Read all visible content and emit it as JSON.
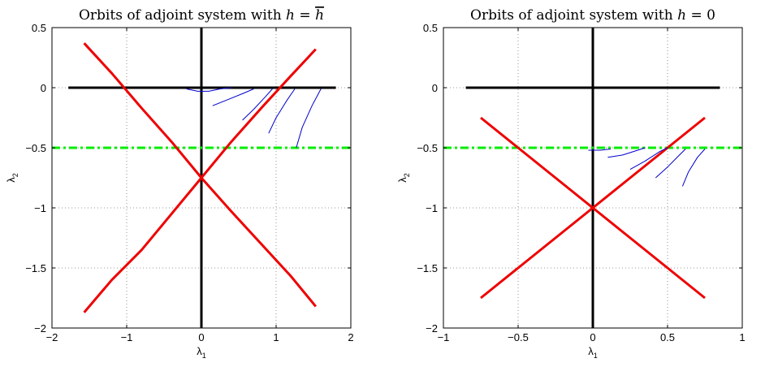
{
  "chart_data": [
    {
      "type": "line",
      "title": "Orbits of adjoint system with h = h̄",
      "title_parts": {
        "main": "Orbits of adjoint system with ",
        "var": "h",
        "eq": " = ",
        "value": "h"
      },
      "xlabel": "λ1",
      "ylabel": "λ2",
      "xlim": [
        -2,
        2
      ],
      "ylim": [
        -2,
        0.5
      ],
      "xticks": [
        -2,
        -1,
        0,
        1,
        2
      ],
      "yticks": [
        -2,
        -1.5,
        -1,
        -0.5,
        0,
        0.5
      ],
      "xtick_labels": [
        "−2",
        "−1",
        "0",
        "1",
        "2"
      ],
      "ytick_labels": [
        "−2",
        "−1.5",
        "−1",
        "−0.5",
        "0",
        "0.5"
      ],
      "grid": true,
      "series": [
        {
          "style": "axis",
          "color": "#000000",
          "points": [
            [
              -1.78,
              0
            ],
            [
              1.8,
              0
            ]
          ]
        },
        {
          "style": "axis",
          "color": "#000000",
          "points": [
            [
              0,
              0.5
            ],
            [
              0,
              -2
            ]
          ]
        },
        {
          "style": "dashdot",
          "color": "#00ee00",
          "points": [
            [
              -2,
              -0.5
            ],
            [
              2,
              -0.5
            ]
          ]
        },
        {
          "style": "thick",
          "color": "#ee0000",
          "points": [
            [
              -1.57,
              0.37
            ],
            [
              -1.2,
              0.12
            ],
            [
              -0.8,
              -0.17
            ],
            [
              -0.4,
              -0.45
            ],
            [
              0,
              -0.75
            ],
            [
              0.4,
              -1.03
            ],
            [
              0.8,
              -1.3
            ],
            [
              1.2,
              -1.57
            ],
            [
              1.53,
              -1.82
            ]
          ]
        },
        {
          "style": "thick",
          "color": "#ee0000",
          "points": [
            [
              -1.57,
              -1.87
            ],
            [
              -1.2,
              -1.6
            ],
            [
              -0.8,
              -1.35
            ],
            [
              -0.4,
              -1.05
            ],
            [
              0,
              -0.75
            ],
            [
              0.4,
              -0.45
            ],
            [
              0.8,
              -0.17
            ],
            [
              1.2,
              0.1
            ],
            [
              1.53,
              0.32
            ]
          ]
        },
        {
          "style": "thin",
          "color": "#0000cc",
          "points": [
            [
              -0.2,
              -0.01
            ],
            [
              -0.05,
              -0.03
            ],
            [
              0.1,
              -0.03
            ],
            [
              0.25,
              -0.01
            ],
            [
              0.4,
              0
            ]
          ]
        },
        {
          "style": "thin",
          "color": "#0000cc",
          "points": [
            [
              0.15,
              -0.15
            ],
            [
              0.35,
              -0.1
            ],
            [
              0.55,
              -0.05
            ],
            [
              0.7,
              -0.01
            ]
          ]
        },
        {
          "style": "thin",
          "color": "#0000cc",
          "points": [
            [
              0.55,
              -0.27
            ],
            [
              0.7,
              -0.18
            ],
            [
              0.85,
              -0.08
            ],
            [
              0.95,
              -0.01
            ]
          ]
        },
        {
          "style": "thin",
          "color": "#0000cc",
          "points": [
            [
              0.9,
              -0.38
            ],
            [
              1.0,
              -0.25
            ],
            [
              1.15,
              -0.1
            ],
            [
              1.25,
              -0.01
            ]
          ]
        },
        {
          "style": "thin",
          "color": "#0000cc",
          "points": [
            [
              1.27,
              -0.5
            ],
            [
              1.35,
              -0.33
            ],
            [
              1.48,
              -0.15
            ],
            [
              1.6,
              -0.01
            ]
          ]
        }
      ]
    },
    {
      "type": "line",
      "title": "Orbits of adjoint system with h = 0",
      "title_parts": {
        "main": "Orbits of adjoint system with ",
        "var": "h",
        "eq": " = ",
        "value": "0"
      },
      "xlabel": "λ1",
      "ylabel": "λ2",
      "xlim": [
        -1,
        1
      ],
      "ylim": [
        -2,
        0.5
      ],
      "xticks": [
        -1,
        -0.5,
        0,
        0.5,
        1
      ],
      "yticks": [
        -2,
        -1.5,
        -1,
        -0.5,
        0,
        0.5
      ],
      "xtick_labels": [
        "−1",
        "−0.5",
        "0",
        "0.5",
        "1"
      ],
      "ytick_labels": [
        "−2",
        "−1.5",
        "−1",
        "−0.5",
        "0",
        "0.5"
      ],
      "grid": true,
      "series": [
        {
          "style": "axis",
          "color": "#000000",
          "points": [
            [
              -0.85,
              0
            ],
            [
              0.85,
              0
            ]
          ]
        },
        {
          "style": "axis",
          "color": "#000000",
          "points": [
            [
              0,
              0.5
            ],
            [
              0,
              -2
            ]
          ]
        },
        {
          "style": "dashdot",
          "color": "#00ee00",
          "points": [
            [
              -1,
              -0.5
            ],
            [
              1,
              -0.5
            ]
          ]
        },
        {
          "style": "thick",
          "color": "#ee0000",
          "points": [
            [
              -0.75,
              -0.25
            ],
            [
              -0.5,
              -0.5
            ],
            [
              -0.25,
              -0.75
            ],
            [
              0,
              -1
            ],
            [
              0.25,
              -1.25
            ],
            [
              0.5,
              -1.5
            ],
            [
              0.75,
              -1.75
            ]
          ]
        },
        {
          "style": "thick",
          "color": "#ee0000",
          "points": [
            [
              -0.75,
              -1.75
            ],
            [
              -0.5,
              -1.5
            ],
            [
              -0.25,
              -1.25
            ],
            [
              0,
              -1
            ],
            [
              0.25,
              -0.75
            ],
            [
              0.5,
              -0.5
            ],
            [
              0.75,
              -0.25
            ]
          ]
        },
        {
          "style": "thin",
          "color": "#0000cc",
          "points": [
            [
              -0.03,
              -0.52
            ],
            [
              0.05,
              -0.52
            ],
            [
              0.12,
              -0.51
            ]
          ]
        },
        {
          "style": "thin",
          "color": "#0000cc",
          "points": [
            [
              0.1,
              -0.58
            ],
            [
              0.2,
              -0.56
            ],
            [
              0.3,
              -0.52
            ],
            [
              0.35,
              -0.5
            ]
          ]
        },
        {
          "style": "thin",
          "color": "#0000cc",
          "points": [
            [
              0.25,
              -0.68
            ],
            [
              0.35,
              -0.61
            ],
            [
              0.45,
              -0.53
            ],
            [
              0.5,
              -0.5
            ]
          ]
        },
        {
          "style": "thin",
          "color": "#0000cc",
          "points": [
            [
              0.42,
              -0.75
            ],
            [
              0.5,
              -0.66
            ],
            [
              0.58,
              -0.56
            ],
            [
              0.62,
              -0.51
            ]
          ]
        },
        {
          "style": "thin",
          "color": "#0000cc",
          "points": [
            [
              0.6,
              -0.82
            ],
            [
              0.64,
              -0.7
            ],
            [
              0.7,
              -0.58
            ],
            [
              0.75,
              -0.51
            ]
          ]
        }
      ]
    }
  ]
}
